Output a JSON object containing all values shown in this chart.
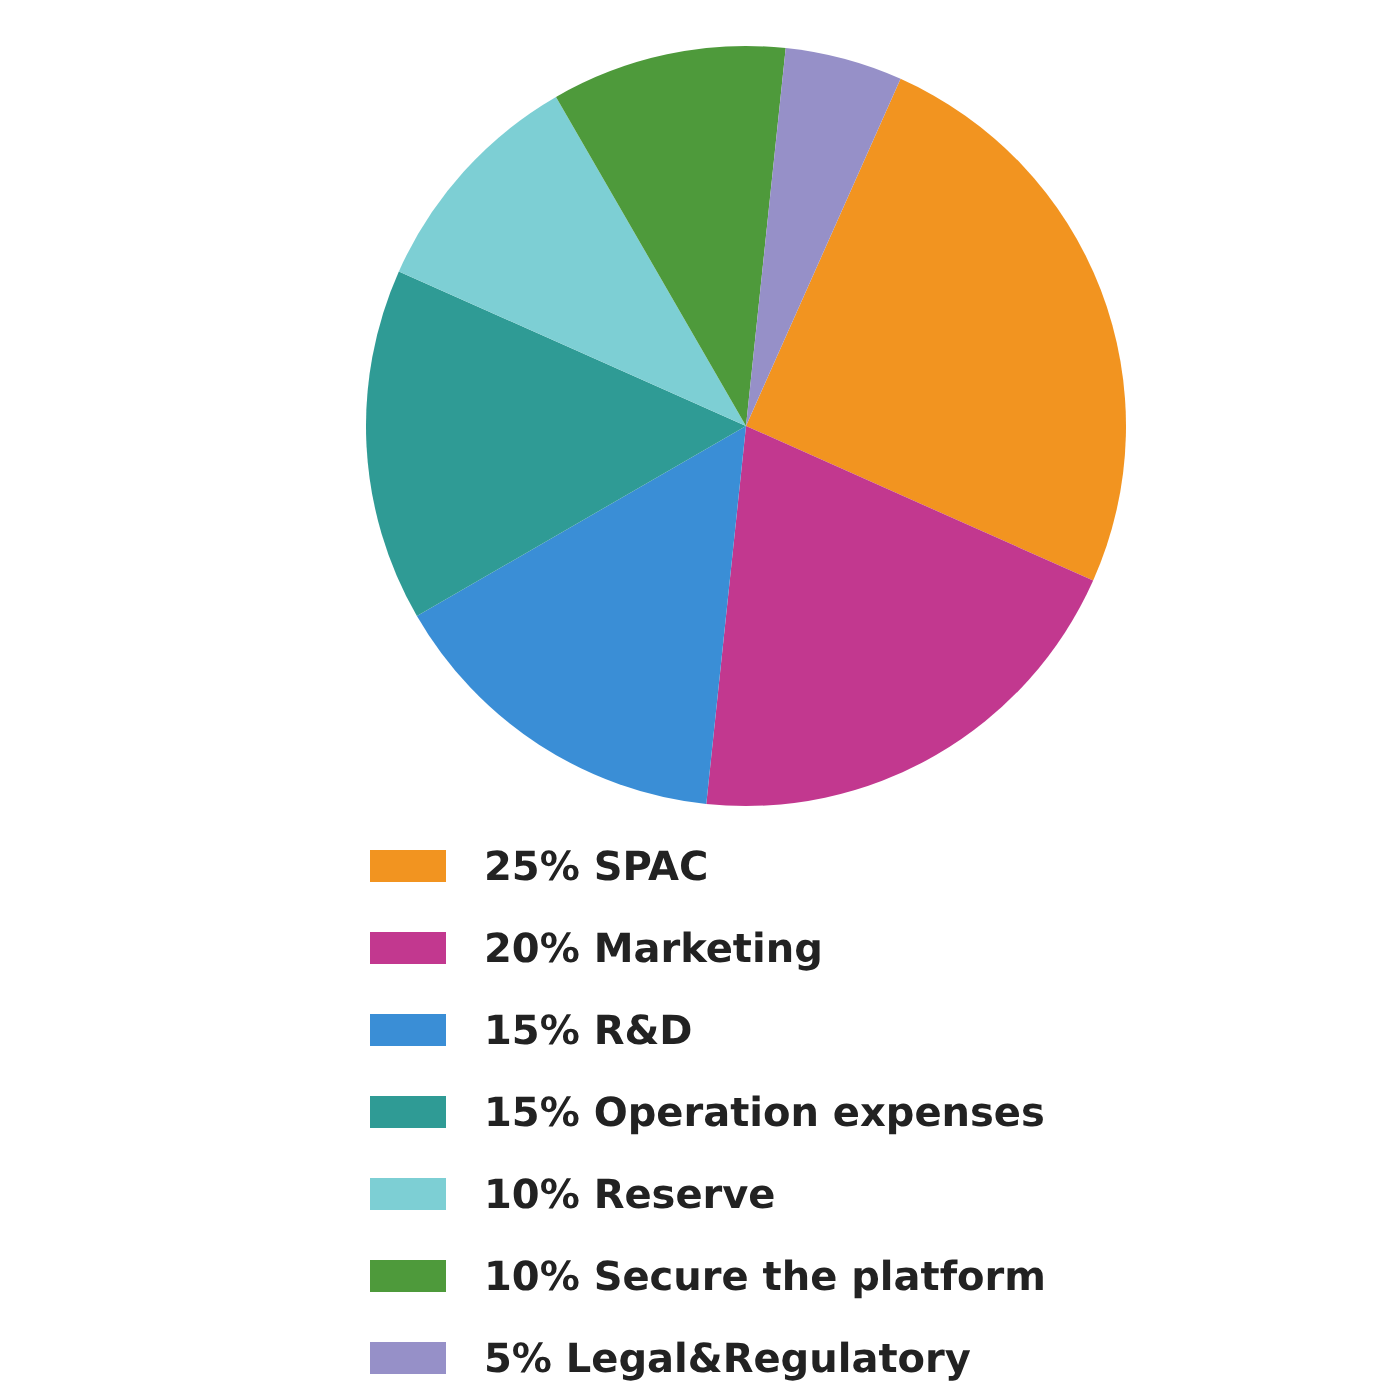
{
  "chart_data": {
    "type": "pie",
    "categories": [
      "25% SPAC",
      "20% Marketing",
      "15% R&D",
      "15% Operation expenses",
      "10% Reserve",
      "10% Secure the platform",
      "5% Legal&Regulatory"
    ],
    "values": [
      25,
      20,
      15,
      15,
      10,
      10,
      5
    ],
    "colors": [
      "#f29420",
      "#c2388f",
      "#3a8ed6",
      "#2f9b95",
      "#7dcfd4",
      "#4e9a3b",
      "#9690c8"
    ],
    "legend": "bottom"
  }
}
